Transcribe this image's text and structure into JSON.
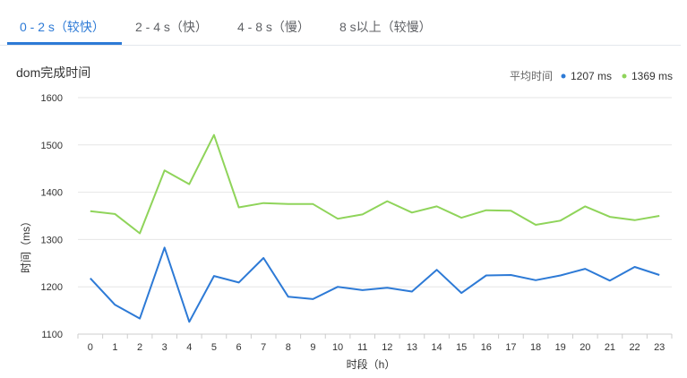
{
  "tabs": [
    {
      "label": "0 - 2 s（较快）",
      "active": true
    },
    {
      "label": "2 - 4 s（快）",
      "active": false
    },
    {
      "label": "4 - 8 s（慢）",
      "active": false
    },
    {
      "label": "8 s以上（较慢）",
      "active": false
    }
  ],
  "chart_data": {
    "type": "line",
    "title": "dom完成时间",
    "xlabel": "时段（h）",
    "ylabel": "时间（ms）",
    "x": [
      0,
      1,
      2,
      3,
      4,
      5,
      6,
      7,
      8,
      9,
      10,
      11,
      12,
      13,
      14,
      15,
      16,
      17,
      18,
      19,
      20,
      21,
      22,
      23
    ],
    "ylim": [
      1100,
      1600
    ],
    "yticks": [
      1100,
      1200,
      1300,
      1400,
      1500,
      1600
    ],
    "grid": true,
    "legend_title": "平均时间",
    "legend_position": "top-right",
    "series": [
      {
        "name": "1207 ms",
        "color": "#2d7ad6",
        "values": [
          1218,
          1162,
          1133,
          1283,
          1126,
          1223,
          1209,
          1261,
          1179,
          1174,
          1200,
          1193,
          1198,
          1190,
          1236,
          1187,
          1224,
          1225,
          1214,
          1224,
          1238,
          1213,
          1242,
          1225
        ]
      },
      {
        "name": "1369 ms",
        "color": "#8fd45a",
        "values": [
          1360,
          1354,
          1313,
          1446,
          1417,
          1521,
          1368,
          1377,
          1375,
          1375,
          1344,
          1353,
          1381,
          1357,
          1370,
          1346,
          1362,
          1361,
          1331,
          1340,
          1370,
          1348,
          1341,
          1350
        ]
      }
    ]
  }
}
